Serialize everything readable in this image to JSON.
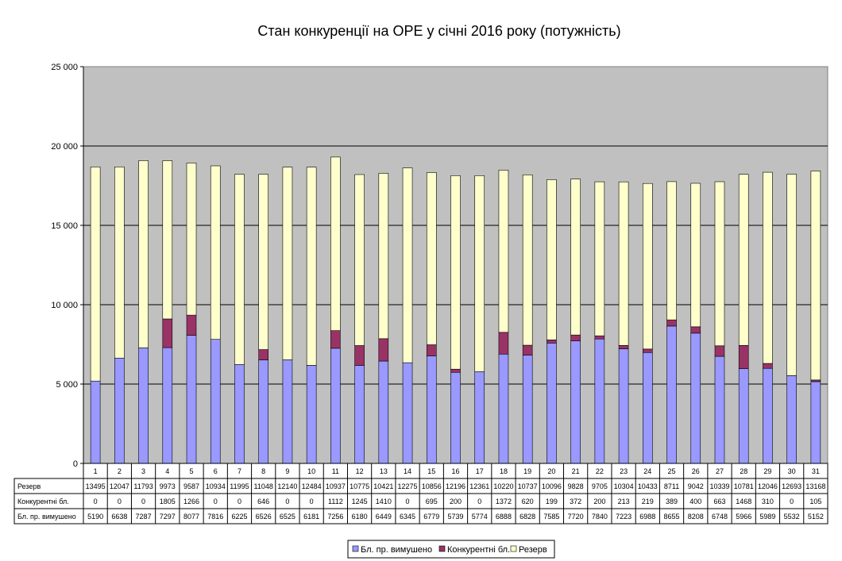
{
  "chart_data": {
    "type": "bar",
    "stacked": true,
    "title": "Стан конкуренції на ОРЕ  у січні 2016 року (потужність)",
    "xlabel": "",
    "ylabel": "",
    "ylim": [
      0,
      25000
    ],
    "yticks": [
      0,
      5000,
      10000,
      15000,
      20000,
      25000
    ],
    "ytick_labels": [
      "0",
      "5 000",
      "10 000",
      "15 000",
      "20 000",
      "25 000"
    ],
    "grid": true,
    "legend_position": "bottom",
    "plot_background": "#c0c0c0",
    "categories": [
      "1",
      "2",
      "3",
      "4",
      "5",
      "6",
      "7",
      "8",
      "9",
      "10",
      "11",
      "12",
      "13",
      "14",
      "15",
      "16",
      "17",
      "18",
      "19",
      "20",
      "21",
      "22",
      "23",
      "24",
      "25",
      "26",
      "27",
      "28",
      "29",
      "30",
      "31"
    ],
    "series": [
      {
        "name": "Бл. пр. вимушено",
        "color": "#9999ff",
        "values": [
          5190,
          6638,
          7287,
          7297,
          8077,
          7816,
          6225,
          6526,
          6525,
          6181,
          7256,
          6180,
          6449,
          6345,
          6779,
          5739,
          5774,
          6888,
          6828,
          7585,
          7720,
          7840,
          7223,
          6988,
          8655,
          8208,
          6748,
          5966,
          5989,
          5532,
          5152
        ]
      },
      {
        "name": "Конкурентні бл.",
        "color": "#993366",
        "values": [
          0,
          0,
          0,
          1805,
          1266,
          0,
          0,
          646,
          0,
          0,
          1112,
          1245,
          1410,
          0,
          695,
          200,
          0,
          1372,
          620,
          199,
          372,
          200,
          213,
          219,
          389,
          400,
          663,
          1468,
          310,
          0,
          105
        ]
      },
      {
        "name": "Резерв",
        "color": "#ffffcc",
        "values": [
          13495,
          12047,
          11793,
          9973,
          9587,
          10934,
          11995,
          11048,
          12140,
          12484,
          10937,
          10775,
          10421,
          12275,
          10856,
          12196,
          12361,
          10220,
          10737,
          10096,
          9828,
          9705,
          10304,
          10433,
          8711,
          9042,
          10339,
          10781,
          12046,
          12693,
          13168
        ]
      }
    ],
    "table_row_order": [
      "Резерв",
      "Конкурентні бл.",
      "Бл. пр. вимушено"
    ]
  }
}
